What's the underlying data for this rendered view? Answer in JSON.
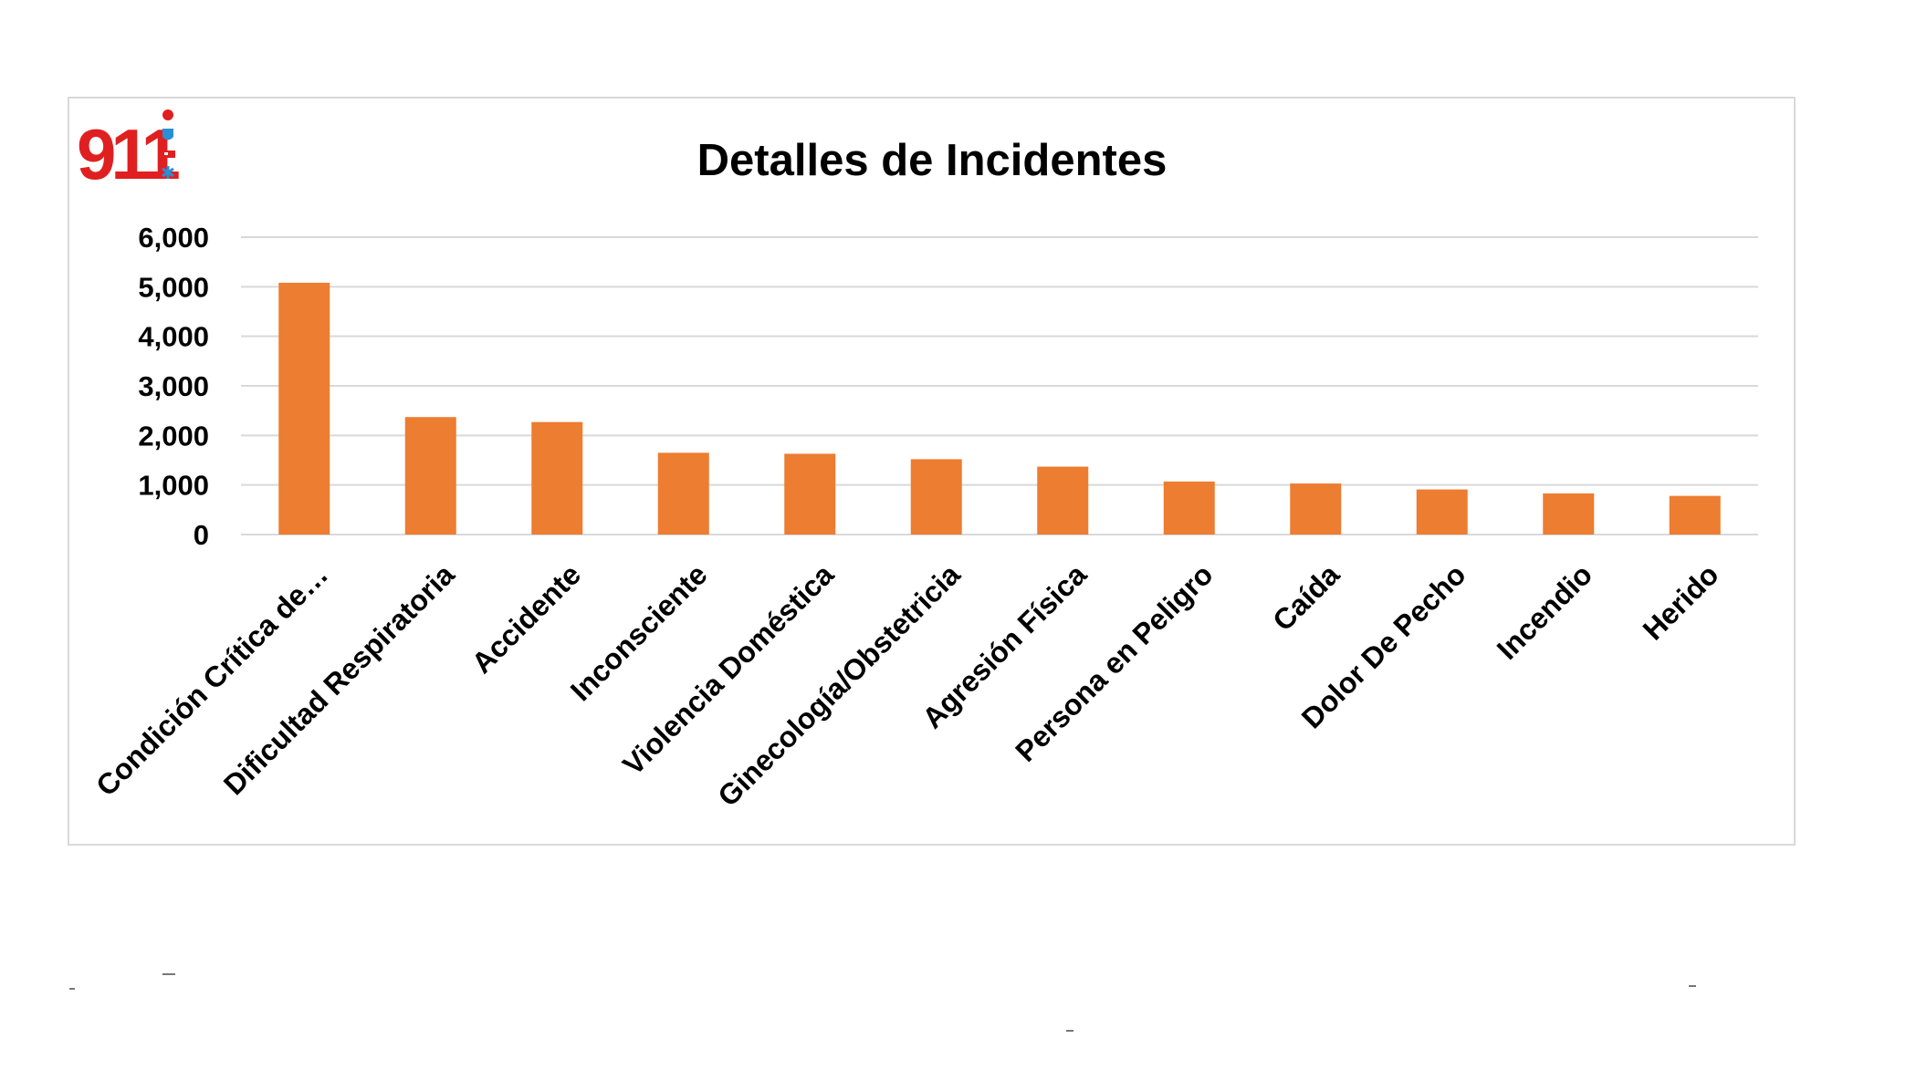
{
  "logo": {
    "text": "911",
    "icons": [
      "heart-icon",
      "shield-icon",
      "ambulance-icon",
      "star-of-life-icon"
    ],
    "colors": {
      "primary": "#e02020",
      "secondary": "#2a8fd6"
    }
  },
  "colors": {
    "bar": "#ed7d31",
    "grid": "#d9d9d9",
    "frame": "#d9d9d9",
    "text": "#000000"
  },
  "chart_data": {
    "type": "bar",
    "title": "Detalles de Incidentes",
    "xlabel": "",
    "ylabel": "",
    "ylim": [
      0,
      6000
    ],
    "yticks": [
      0,
      1000,
      2000,
      3000,
      4000,
      5000,
      6000
    ],
    "ytick_labels": [
      "0",
      "1,000",
      "2,000",
      "3,000",
      "4,000",
      "5,000",
      "6,000"
    ],
    "grid": true,
    "legend": "none",
    "categories": [
      "Condición Crítica de…",
      "Dificultad Respiratoria",
      "Accidente",
      "Inconsciente",
      "Violencia Doméstica",
      "Ginecología/Obstetricia",
      "Agresión Física",
      "Persona en Peligro",
      "Caída",
      "Dolor De Pecho",
      "Incendio",
      "Herido"
    ],
    "values": [
      5080,
      2370,
      2270,
      1650,
      1630,
      1520,
      1370,
      1070,
      1030,
      910,
      830,
      780
    ]
  }
}
